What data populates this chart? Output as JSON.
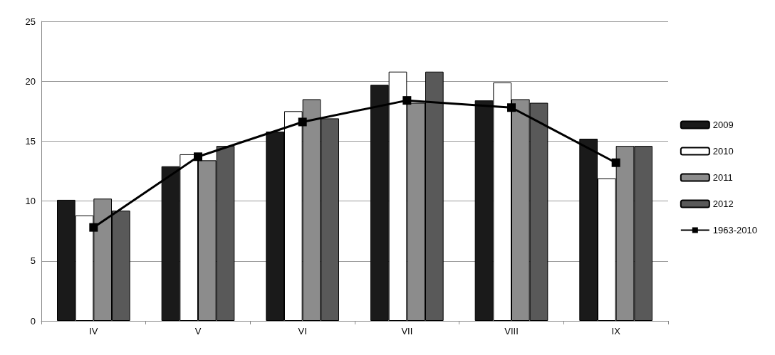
{
  "chart_data": {
    "type": "bar",
    "categories": [
      "IV",
      "V",
      "VI",
      "VII",
      "VIII",
      "IX"
    ],
    "series": [
      {
        "name": "2009",
        "color": "#1a1a1a",
        "values": [
          10.1,
          12.9,
          15.8,
          19.7,
          18.4,
          15.2
        ]
      },
      {
        "name": "2010",
        "color": "#ffffff",
        "values": [
          8.8,
          13.9,
          17.5,
          20.8,
          19.9,
          11.9
        ]
      },
      {
        "name": "2011",
        "color": "#8c8c8c",
        "values": [
          10.2,
          13.4,
          18.5,
          18.2,
          18.5,
          14.6
        ]
      },
      {
        "name": "2012",
        "color": "#595959",
        "values": [
          9.2,
          14.6,
          16.9,
          20.8,
          18.2,
          14.6
        ]
      },
      {
        "name": "1963-2010",
        "type": "line",
        "color": "#000000",
        "marker": "square",
        "values": [
          7.8,
          13.7,
          16.6,
          18.4,
          17.8,
          13.2
        ]
      }
    ],
    "ylim": [
      0,
      25
    ],
    "yticks": [
      0,
      5,
      10,
      15,
      20,
      25
    ],
    "grid": "y",
    "legend": "right"
  }
}
